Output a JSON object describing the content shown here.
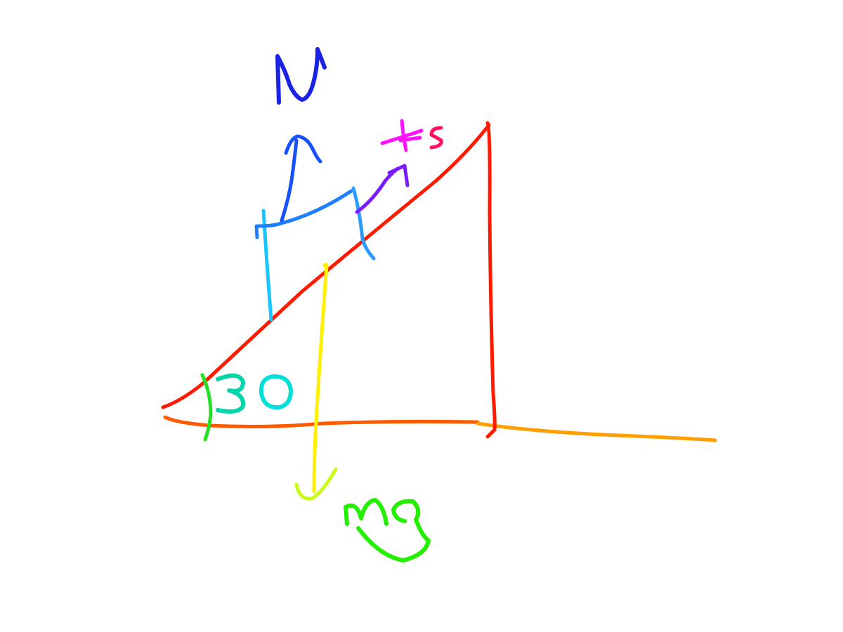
{
  "labels": {
    "normal_force": "N",
    "static_friction": "Fs",
    "weight": "Mg",
    "angle": "30"
  },
  "colors": {
    "background": "#ffffff",
    "incline": "#ff1a00",
    "ground_left": "#ff5a00",
    "ground_right": "#ffa000",
    "block_top": "#1e7fff",
    "block_left": "#18c6ff",
    "block_right": "#2a9cff",
    "normal_arrow": "#1650ff",
    "normal_label": "#1a22e6",
    "friction_arrow": "#7a1cff",
    "friction_label_f": "#ff10ff",
    "friction_label_s": "#ff1060",
    "weight_arrow": "#ffef00",
    "weight_arrowhead": "#c8ff1a",
    "weight_label": "#22f000",
    "angle_arc": "#22e022",
    "angle_label_3": "#00d6a8",
    "angle_label_0": "#00e0d8"
  }
}
